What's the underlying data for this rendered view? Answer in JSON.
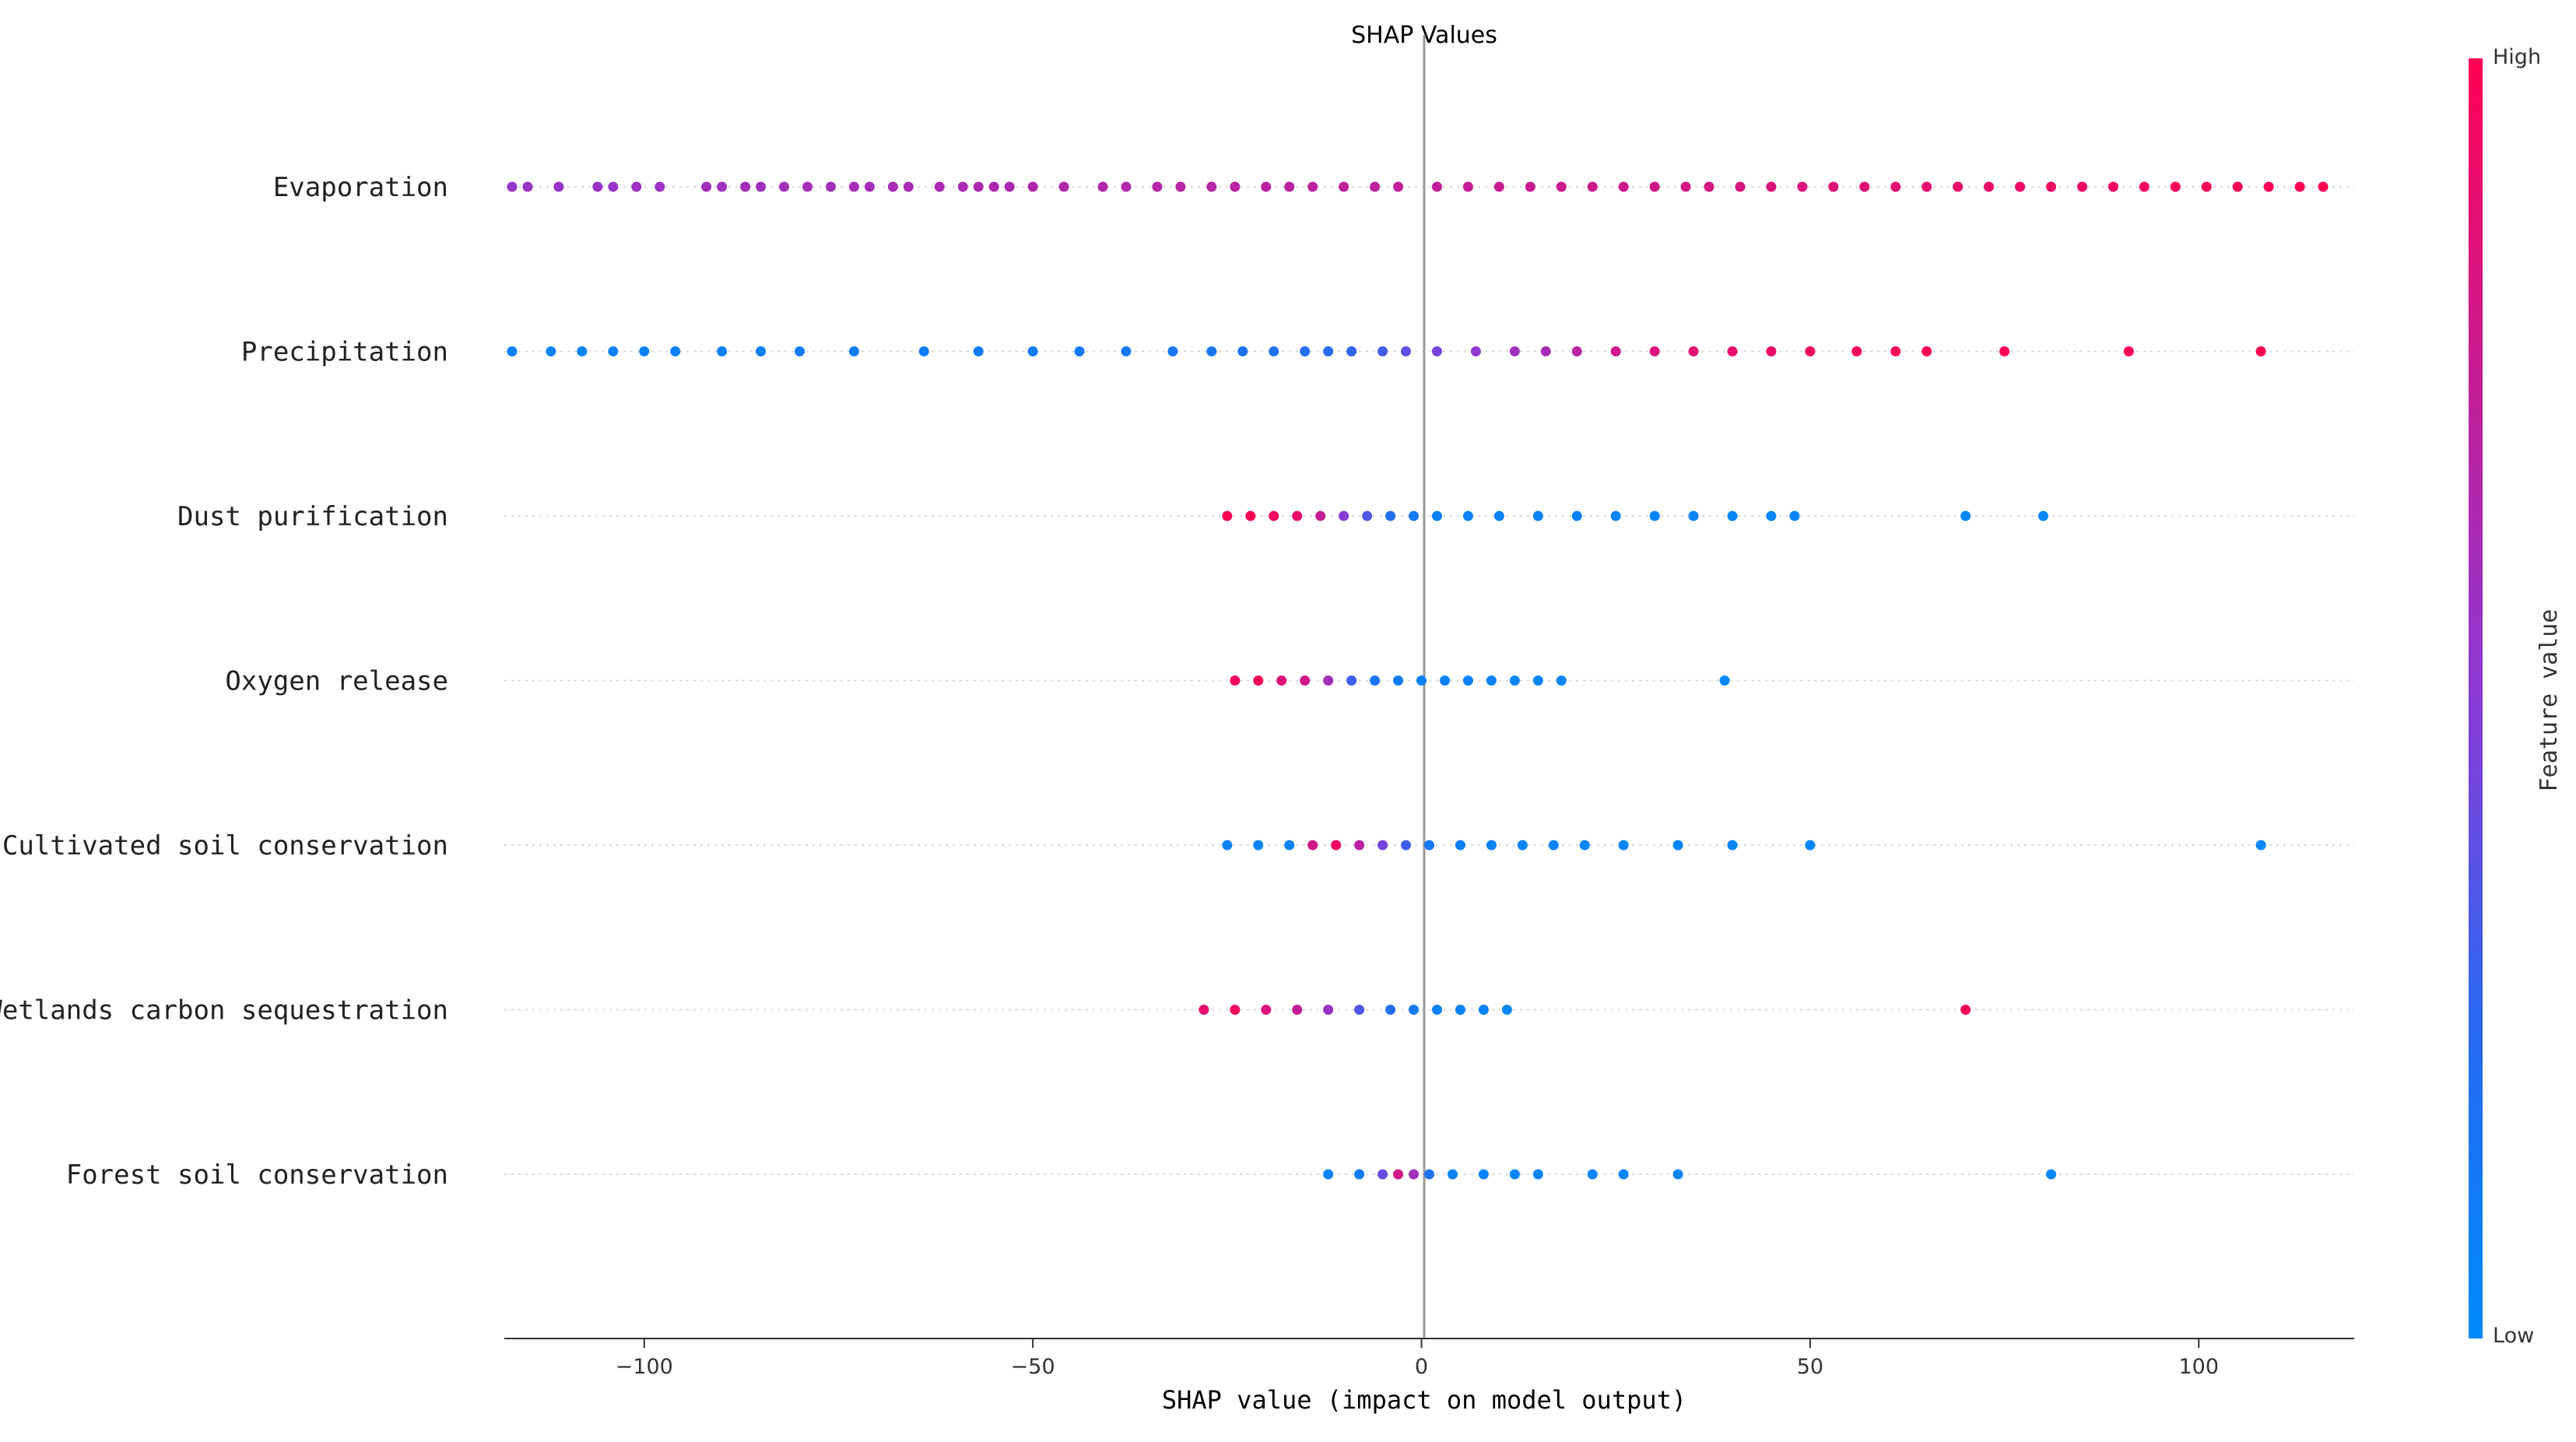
{
  "chart_data": {
    "type": "scatter",
    "subtype": "shap-beeswarm",
    "title": "SHAP Values",
    "xlabel": "SHAP value (impact on model output)",
    "xlim": [
      -118,
      120
    ],
    "xticks": [
      -100,
      -50,
      0,
      50,
      100
    ],
    "xtick_labels": [
      "−100",
      "−50",
      "0",
      "50",
      "100"
    ],
    "features": [
      "Evaporation",
      "Precipitation",
      "Dust purification",
      "Oxygen release",
      "Cultivated soil conservation",
      "Wetlands carbon sequestration",
      "Forest soil conservation"
    ],
    "colorbar": {
      "title": "Feature value",
      "high_label": "High",
      "low_label": "Low",
      "high_color": "#ff0052",
      "low_color": "#008afb"
    },
    "series": [
      {
        "feature": "Evaporation",
        "points": [
          {
            "x": -117,
            "f": 0.55
          },
          {
            "x": -115,
            "f": 0.56
          },
          {
            "x": -111,
            "f": 0.56
          },
          {
            "x": -106,
            "f": 0.57
          },
          {
            "x": -104,
            "f": 0.56
          },
          {
            "x": -101,
            "f": 0.58
          },
          {
            "x": -98,
            "f": 0.57
          },
          {
            "x": -92,
            "f": 0.59
          },
          {
            "x": -90,
            "f": 0.58
          },
          {
            "x": -87,
            "f": 0.6
          },
          {
            "x": -85,
            "f": 0.59
          },
          {
            "x": -82,
            "f": 0.6
          },
          {
            "x": -79,
            "f": 0.61
          },
          {
            "x": -76,
            "f": 0.6
          },
          {
            "x": -73,
            "f": 0.62
          },
          {
            "x": -71,
            "f": 0.61
          },
          {
            "x": -68,
            "f": 0.63
          },
          {
            "x": -66,
            "f": 0.62
          },
          {
            "x": -62,
            "f": 0.64
          },
          {
            "x": -59,
            "f": 0.63
          },
          {
            "x": -57,
            "f": 0.64
          },
          {
            "x": -55,
            "f": 0.65
          },
          {
            "x": -53,
            "f": 0.64
          },
          {
            "x": -50,
            "f": 0.66
          },
          {
            "x": -46,
            "f": 0.66
          },
          {
            "x": -41,
            "f": 0.67
          },
          {
            "x": -38,
            "f": 0.67
          },
          {
            "x": -34,
            "f": 0.68
          },
          {
            "x": -31,
            "f": 0.69
          },
          {
            "x": -27,
            "f": 0.69
          },
          {
            "x": -24,
            "f": 0.7
          },
          {
            "x": -20,
            "f": 0.7
          },
          {
            "x": -17,
            "f": 0.71
          },
          {
            "x": -14,
            "f": 0.71
          },
          {
            "x": -10,
            "f": 0.72
          },
          {
            "x": -6,
            "f": 0.72
          },
          {
            "x": -3,
            "f": 0.73
          },
          {
            "x": 2,
            "f": 0.74
          },
          {
            "x": 6,
            "f": 0.75
          },
          {
            "x": 10,
            "f": 0.76
          },
          {
            "x": 14,
            "f": 0.77
          },
          {
            "x": 18,
            "f": 0.78
          },
          {
            "x": 22,
            "f": 0.78
          },
          {
            "x": 26,
            "f": 0.79
          },
          {
            "x": 30,
            "f": 0.8
          },
          {
            "x": 34,
            "f": 0.81
          },
          {
            "x": 37,
            "f": 0.82
          },
          {
            "x": 41,
            "f": 0.83
          },
          {
            "x": 45,
            "f": 0.84
          },
          {
            "x": 49,
            "f": 0.85
          },
          {
            "x": 53,
            "f": 0.86
          },
          {
            "x": 57,
            "f": 0.87
          },
          {
            "x": 61,
            "f": 0.88
          },
          {
            "x": 65,
            "f": 0.89
          },
          {
            "x": 69,
            "f": 0.9
          },
          {
            "x": 73,
            "f": 0.91
          },
          {
            "x": 77,
            "f": 0.92
          },
          {
            "x": 81,
            "f": 0.93
          },
          {
            "x": 85,
            "f": 0.94
          },
          {
            "x": 89,
            "f": 0.95
          },
          {
            "x": 93,
            "f": 0.96
          },
          {
            "x": 97,
            "f": 0.97
          },
          {
            "x": 101,
            "f": 0.97
          },
          {
            "x": 105,
            "f": 0.98
          },
          {
            "x": 109,
            "f": 0.98
          },
          {
            "x": 113,
            "f": 0.99
          },
          {
            "x": 116,
            "f": 1.0
          }
        ]
      },
      {
        "feature": "Precipitation",
        "points": [
          {
            "x": -117,
            "f": 0.05
          },
          {
            "x": -112,
            "f": 0.05
          },
          {
            "x": -108,
            "f": 0.06
          },
          {
            "x": -104,
            "f": 0.06
          },
          {
            "x": -100,
            "f": 0.07
          },
          {
            "x": -96,
            "f": 0.07
          },
          {
            "x": -90,
            "f": 0.08
          },
          {
            "x": -85,
            "f": 0.08
          },
          {
            "x": -80,
            "f": 0.09
          },
          {
            "x": -73,
            "f": 0.09
          },
          {
            "x": -64,
            "f": 0.1
          },
          {
            "x": -57,
            "f": 0.1
          },
          {
            "x": -50,
            "f": 0.11
          },
          {
            "x": -44,
            "f": 0.12
          },
          {
            "x": -38,
            "f": 0.13
          },
          {
            "x": -32,
            "f": 0.14
          },
          {
            "x": -27,
            "f": 0.15
          },
          {
            "x": -23,
            "f": 0.16
          },
          {
            "x": -19,
            "f": 0.18
          },
          {
            "x": -15,
            "f": 0.2
          },
          {
            "x": -12,
            "f": 0.23
          },
          {
            "x": -9,
            "f": 0.27
          },
          {
            "x": -5,
            "f": 0.32
          },
          {
            "x": -2,
            "f": 0.38
          },
          {
            "x": 2,
            "f": 0.45
          },
          {
            "x": 7,
            "f": 0.52
          },
          {
            "x": 12,
            "f": 0.58
          },
          {
            "x": 16,
            "f": 0.62
          },
          {
            "x": 20,
            "f": 0.7
          },
          {
            "x": 25,
            "f": 0.78
          },
          {
            "x": 30,
            "f": 0.84
          },
          {
            "x": 35,
            "f": 0.88
          },
          {
            "x": 40,
            "f": 0.9
          },
          {
            "x": 45,
            "f": 0.92
          },
          {
            "x": 50,
            "f": 0.94
          },
          {
            "x": 56,
            "f": 0.95
          },
          {
            "x": 61,
            "f": 0.96
          },
          {
            "x": 65,
            "f": 0.97
          },
          {
            "x": 75,
            "f": 0.98
          },
          {
            "x": 91,
            "f": 0.99
          },
          {
            "x": 108,
            "f": 1.0
          }
        ]
      },
      {
        "feature": "Dust purification",
        "points": [
          {
            "x": -25,
            "f": 1.0
          },
          {
            "x": -22,
            "f": 0.98
          },
          {
            "x": -19,
            "f": 0.95
          },
          {
            "x": -16,
            "f": 0.9
          },
          {
            "x": -13,
            "f": 0.75
          },
          {
            "x": -10,
            "f": 0.5
          },
          {
            "x": -7,
            "f": 0.35
          },
          {
            "x": -4,
            "f": 0.2
          },
          {
            "x": -1,
            "f": 0.12
          },
          {
            "x": 2,
            "f": 0.08
          },
          {
            "x": 6,
            "f": 0.06
          },
          {
            "x": 10,
            "f": 0.06
          },
          {
            "x": 15,
            "f": 0.05
          },
          {
            "x": 20,
            "f": 0.05
          },
          {
            "x": 25,
            "f": 0.04
          },
          {
            "x": 30,
            "f": 0.04
          },
          {
            "x": 35,
            "f": 0.04
          },
          {
            "x": 40,
            "f": 0.03
          },
          {
            "x": 45,
            "f": 0.03
          },
          {
            "x": 48,
            "f": 0.03
          },
          {
            "x": 70,
            "f": 0.02
          },
          {
            "x": 80,
            "f": 0.02
          }
        ]
      },
      {
        "feature": "Oxygen release",
        "points": [
          {
            "x": -24,
            "f": 0.95
          },
          {
            "x": -21,
            "f": 0.98
          },
          {
            "x": -18,
            "f": 0.85
          },
          {
            "x": -15,
            "f": 0.8
          },
          {
            "x": -12,
            "f": 0.6
          },
          {
            "x": -9,
            "f": 0.3
          },
          {
            "x": -6,
            "f": 0.15
          },
          {
            "x": -3,
            "f": 0.1
          },
          {
            "x": 0,
            "f": 0.07
          },
          {
            "x": 3,
            "f": 0.06
          },
          {
            "x": 6,
            "f": 0.05
          },
          {
            "x": 9,
            "f": 0.05
          },
          {
            "x": 12,
            "f": 0.04
          },
          {
            "x": 15,
            "f": 0.04
          },
          {
            "x": 18,
            "f": 0.03
          },
          {
            "x": 39,
            "f": 0.02
          }
        ]
      },
      {
        "feature": "Cultivated soil conservation",
        "points": [
          {
            "x": -25,
            "f": 0.05
          },
          {
            "x": -21,
            "f": 0.05
          },
          {
            "x": -17,
            "f": 0.06
          },
          {
            "x": -14,
            "f": 0.8
          },
          {
            "x": -11,
            "f": 0.95
          },
          {
            "x": -8,
            "f": 0.7
          },
          {
            "x": -5,
            "f": 0.45
          },
          {
            "x": -2,
            "f": 0.3
          },
          {
            "x": 1,
            "f": 0.15
          },
          {
            "x": 5,
            "f": 0.08
          },
          {
            "x": 9,
            "f": 0.06
          },
          {
            "x": 13,
            "f": 0.05
          },
          {
            "x": 17,
            "f": 0.05
          },
          {
            "x": 21,
            "f": 0.04
          },
          {
            "x": 26,
            "f": 0.04
          },
          {
            "x": 33,
            "f": 0.03
          },
          {
            "x": 40,
            "f": 0.03
          },
          {
            "x": 50,
            "f": 0.02
          },
          {
            "x": 108,
            "f": 0.02
          }
        ]
      },
      {
        "feature": "Wetlands carbon sequestration",
        "points": [
          {
            "x": -28,
            "f": 0.9
          },
          {
            "x": -24,
            "f": 0.95
          },
          {
            "x": -20,
            "f": 0.85
          },
          {
            "x": -16,
            "f": 0.75
          },
          {
            "x": -12,
            "f": 0.55
          },
          {
            "x": -8,
            "f": 0.35
          },
          {
            "x": -4,
            "f": 0.2
          },
          {
            "x": -1,
            "f": 0.12
          },
          {
            "x": 2,
            "f": 0.07
          },
          {
            "x": 5,
            "f": 0.05
          },
          {
            "x": 8,
            "f": 0.05
          },
          {
            "x": 11,
            "f": 0.04
          },
          {
            "x": 70,
            "f": 0.98
          }
        ]
      },
      {
        "feature": "Forest soil conservation",
        "points": [
          {
            "x": -12,
            "f": 0.05
          },
          {
            "x": -8,
            "f": 0.1
          },
          {
            "x": -5,
            "f": 0.4
          },
          {
            "x": -3,
            "f": 0.8
          },
          {
            "x": -1,
            "f": 0.6
          },
          {
            "x": 1,
            "f": 0.2
          },
          {
            "x": 4,
            "f": 0.07
          },
          {
            "x": 8,
            "f": 0.05
          },
          {
            "x": 12,
            "f": 0.04
          },
          {
            "x": 15,
            "f": 0.04
          },
          {
            "x": 22,
            "f": 0.03
          },
          {
            "x": 26,
            "f": 0.03
          },
          {
            "x": 33,
            "f": 0.03
          },
          {
            "x": 81,
            "f": 0.02
          }
        ]
      }
    ]
  }
}
